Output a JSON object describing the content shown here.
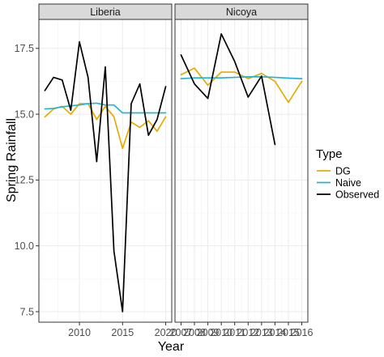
{
  "chart_data": {
    "type": "line",
    "xlabel": "Year",
    "ylabel": "Spring Rainfall",
    "ylim": [
      7.1,
      18.6
    ],
    "y_ticks": [
      "7.5",
      "10.0",
      "12.5",
      "15.0",
      "17.5"
    ],
    "grid": true,
    "legend": {
      "title": "Type",
      "position": "right",
      "entries": [
        {
          "label": "DG",
          "color": "#E6AB02"
        },
        {
          "label": "Naive",
          "color": "#1FB5D6"
        },
        {
          "label": "Observed",
          "color": "#000000"
        }
      ]
    },
    "panels": [
      {
        "name": "Liberia",
        "xlim": [
          2005.3,
          2020.7
        ],
        "x_ticks": [
          "2010",
          "2015",
          "2020"
        ],
        "series": [
          {
            "name": "DG",
            "x": [
              2006,
              2007,
              2008,
              2009,
              2010,
              2011,
              2012,
              2013,
              2014,
              2015,
              2016,
              2017,
              2018,
              2019,
              2020
            ],
            "y": [
              14.9,
              15.2,
              15.3,
              15.0,
              15.4,
              15.4,
              14.8,
              15.3,
              14.9,
              13.7,
              14.7,
              14.5,
              14.75,
              14.35,
              14.9
            ]
          },
          {
            "name": "Naive",
            "x": [
              2006,
              2007,
              2008,
              2009,
              2010,
              2011,
              2012,
              2013,
              2014,
              2015,
              2016,
              2017,
              2018,
              2019,
              2020
            ],
            "y": [
              15.2,
              15.22,
              15.28,
              15.32,
              15.35,
              15.4,
              15.42,
              15.35,
              15.35,
              15.05,
              15.05,
              15.05,
              15.05,
              15.05,
              15.05
            ]
          },
          {
            "name": "Observed",
            "x": [
              2006,
              2007,
              2008,
              2009,
              2010,
              2011,
              2012,
              2013,
              2014,
              2015,
              2016,
              2017,
              2018,
              2019,
              2020
            ],
            "y": [
              15.9,
              16.4,
              16.3,
              15.15,
              17.75,
              16.4,
              13.2,
              16.8,
              9.8,
              7.5,
              15.4,
              16.15,
              14.2,
              14.8,
              16.05
            ]
          }
        ]
      },
      {
        "name": "Nicoya",
        "xlim": [
          2006.55,
          2016.45
        ],
        "x_ticks": [
          "2007",
          "2008",
          "2009",
          "2010",
          "2011",
          "2012",
          "2013",
          "2014",
          "2015",
          "2016"
        ],
        "series": [
          {
            "name": "DG",
            "x": [
              2007,
              2008,
              2009,
              2010,
              2011,
              2012,
              2013,
              2014,
              2015,
              2016
            ],
            "y": [
              16.5,
              16.75,
              16.1,
              16.6,
              16.6,
              16.35,
              16.55,
              16.25,
              15.45,
              16.25
            ]
          },
          {
            "name": "Naive",
            "x": [
              2007,
              2008,
              2009,
              2010,
              2011,
              2012,
              2013,
              2014,
              2015,
              2016
            ],
            "y": [
              16.35,
              16.38,
              16.38,
              16.38,
              16.4,
              16.42,
              16.42,
              16.4,
              16.37,
              16.35
            ]
          },
          {
            "name": "Observed",
            "x": [
              2007,
              2008,
              2009,
              2010,
              2011,
              2012,
              2013,
              2014
            ],
            "y": [
              17.25,
              16.15,
              15.6,
              18.05,
              17.0,
              15.65,
              16.45,
              13.85
            ]
          }
        ]
      }
    ]
  }
}
